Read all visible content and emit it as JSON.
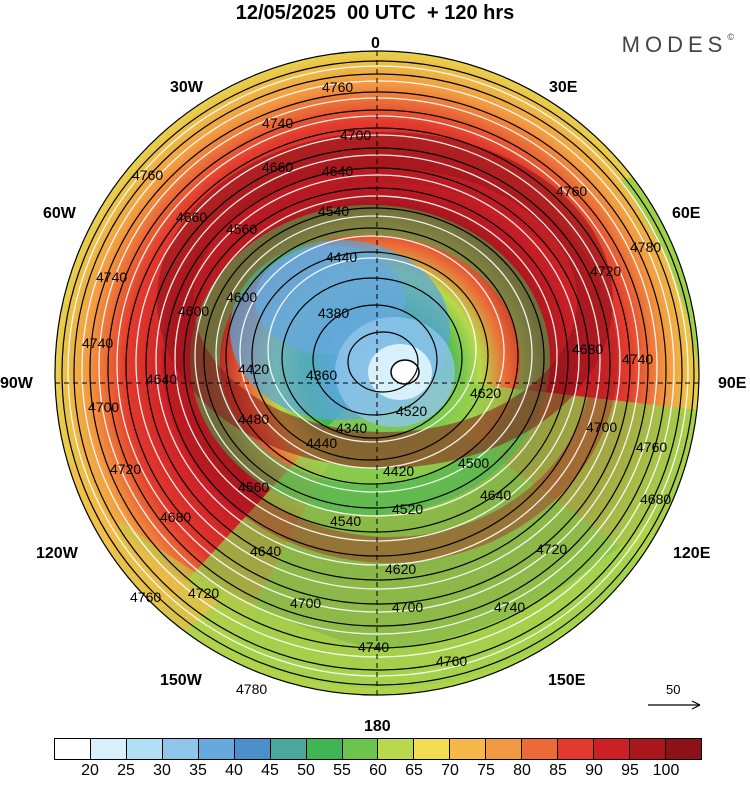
{
  "title": "12/05/2025  00 UTC  + 120 hrs",
  "brand": {
    "text": "MODES",
    "mark": "©"
  },
  "longitude_labels": {
    "lon_0": "0",
    "lon_30e": "30E",
    "lon_60e": "60E",
    "lon_90e": "90E",
    "lon_120e": "120E",
    "lon_150e": "150E",
    "lon_180": "180",
    "lon_150w": "150W",
    "lon_120w": "120W",
    "lon_90w": "90W",
    "lon_60w": "60W",
    "lon_30w": "30W"
  },
  "reference_vector": {
    "label": "50"
  },
  "colorbar": {
    "labels": [
      "20",
      "25",
      "30",
      "35",
      "40",
      "45",
      "50",
      "55",
      "60",
      "65",
      "70",
      "75",
      "80",
      "85",
      "90",
      "95",
      "100"
    ],
    "colors": [
      "#ffffff",
      "#d8f0fb",
      "#b3dff5",
      "#8ec6ea",
      "#66a9dc",
      "#4b8fca",
      "#4aa79b",
      "#3fb653",
      "#6cc34d",
      "#b8d94c",
      "#f3dd53",
      "#f6b849",
      "#f29a41",
      "#ec6a37",
      "#e23a2d",
      "#cc2027",
      "#a8161e",
      "#8b1219"
    ]
  },
  "contour_labels": {
    "c4760_top": "4760",
    "c4740_top": "4740",
    "c4700_top": "4700",
    "c4660_top": "4660",
    "c4640_top": "4640",
    "c4540_top": "4540",
    "c4560_nw": "4560",
    "c4440_top": "4440",
    "c4380": "4380",
    "c4420_w": "4420",
    "c4360": "4360",
    "c4340": "4340",
    "c4480_w": "4480",
    "c4440_s": "4440",
    "c4420_s": "4420",
    "c4500_se": "4500",
    "c4520_s": "4520",
    "c4560_sw": "4560",
    "c4540_s": "4540",
    "c4620_s": "4620",
    "c4640_sw": "4640",
    "c4700_s": "4700",
    "c4700_sw": "4700",
    "c4720_sw": "4720",
    "c4720_w": "4720",
    "c4680_sw": "4680",
    "c4760_sw": "4760",
    "c4780_sw": "4780",
    "c4740_s": "4740",
    "c4760_s": "4760",
    "c4740_se": "4740",
    "c4720_se": "4720",
    "c4680_se": "4680",
    "c4760_e": "4760",
    "c4700_e": "4700",
    "c4740_e": "4740",
    "c4680_e": "4680",
    "c4720_e": "4720",
    "c4760_ne": "4760",
    "c4780_ne": "4780",
    "c4600_nw": "4600",
    "c4620_e": "4620",
    "c4840_se": "4640",
    "c4740_w": "4740",
    "c4760_nw": "4760",
    "c4740_nw": "4740",
    "c4700_w": "4700",
    "c4600_w": "4600",
    "c4640_w": "4640",
    "c4660_w": "4660",
    "c4520_e": "4520"
  }
}
